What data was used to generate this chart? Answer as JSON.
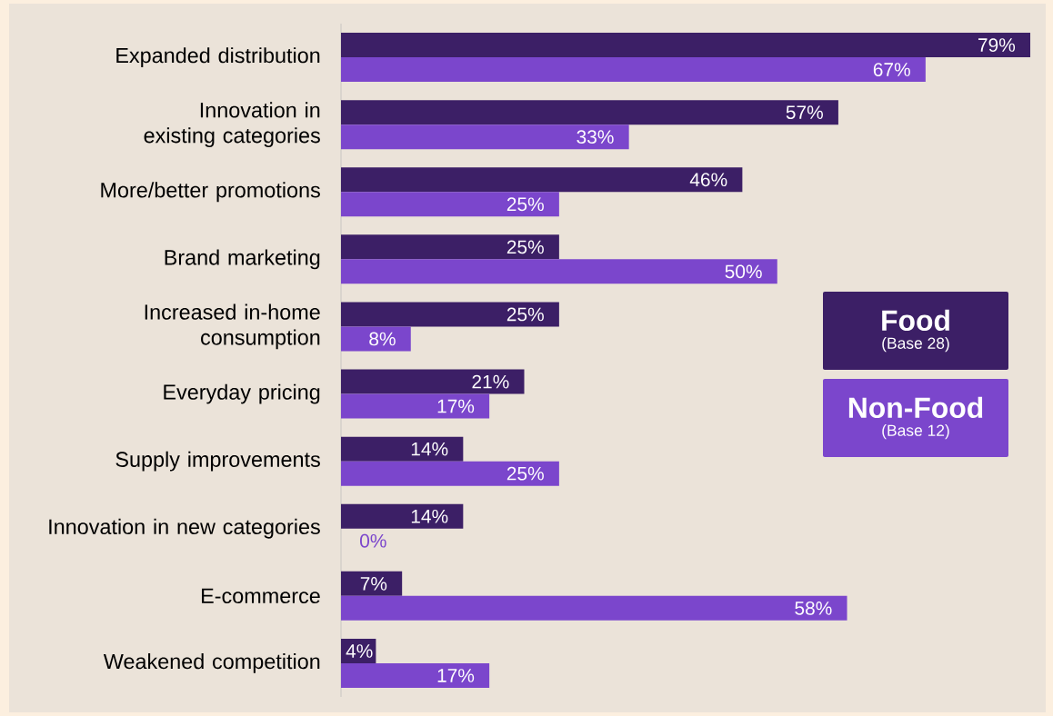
{
  "chart_data": {
    "type": "bar",
    "orientation": "horizontal",
    "tick_labels": "y",
    "legend": "right",
    "categories": [
      "Expanded distribution",
      "Innovation in existing categories",
      "More/better promotions",
      "Brand marketing",
      "Increased in-home consumption",
      "Everyday pricing",
      "Supply improvements",
      "Innovation in new categories",
      "E-commerce",
      "Weakened competition"
    ],
    "series": [
      {
        "name": "Food",
        "color": "#3c1f66",
        "values": [
          79,
          57,
          46,
          25,
          25,
          21,
          14,
          14,
          7,
          4
        ],
        "value_labels": [
          "79%",
          "57%",
          "46%",
          "25%",
          "25%",
          "21%",
          "14%",
          "14%",
          "7%",
          "4%"
        ]
      },
      {
        "name": "Non-Food",
        "color": "#7b46cc",
        "values": [
          67,
          33,
          25,
          50,
          8,
          17,
          25,
          0,
          58,
          17
        ],
        "value_labels": [
          "67%",
          "33%",
          "25%",
          "50%",
          "8%",
          "17%",
          "25%",
          "0%",
          "58%",
          "17%"
        ]
      }
    ],
    "annotations": [
      "(Base 28)",
      "(Base 12)"
    ]
  }
}
